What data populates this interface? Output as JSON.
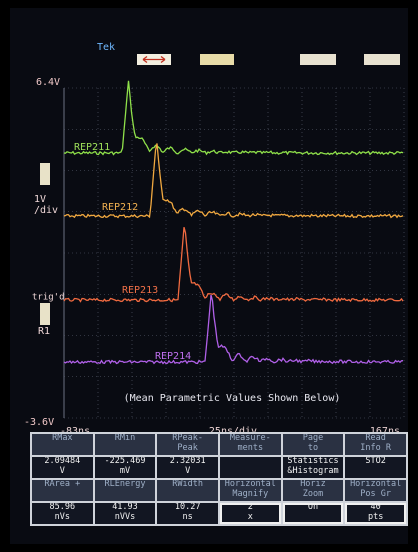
{
  "header": {
    "brand": "Tek"
  },
  "axis": {
    "top": "6.4V",
    "scale_1": "1V",
    "scale_2": "/div",
    "trigger": "trig'd",
    "ref": "R1",
    "bottom": "-3.6V",
    "x_left": "-83ns",
    "x_scale": "25ns/div",
    "x_right": "167ns"
  },
  "traces": [
    "REP211",
    "REP212",
    "REP213",
    "REP214"
  ],
  "note": "(Mean Parametric Values Shown Below)",
  "table": {
    "rows": [
      [
        "RMax",
        "RMin",
        "RPeak-\nPeak",
        "Measure-\nments",
        "Page\nto",
        "Read\nInfo R"
      ],
      [
        "2.09484\nV",
        "-225.469\nmV",
        "2.32031\nV",
        "",
        "Statistics\n&Histogram",
        "STO2"
      ],
      [
        "RArea +",
        "RLEnergy",
        "RWidth",
        "Horizontal\nMagnify",
        "Horiz\nZoom",
        "Horizontal\nPos Gr"
      ],
      [
        "85.96\nnVs",
        "41.93\nnVVs",
        "10.27\nns",
        "2\nx",
        "On",
        "40\npts"
      ]
    ]
  }
}
